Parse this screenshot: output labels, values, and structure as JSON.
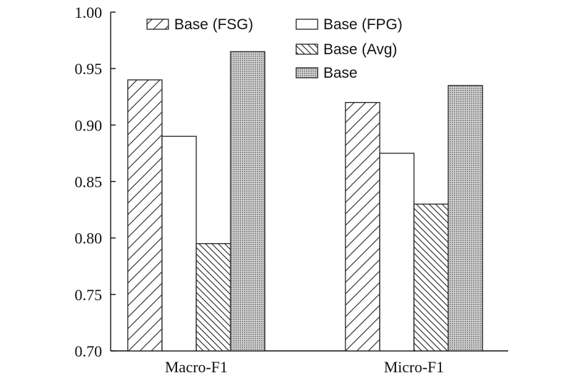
{
  "chart_data": {
    "type": "bar",
    "title": "",
    "xlabel": "",
    "ylabel": "",
    "categories": [
      "Macro-F1",
      "Micro-F1"
    ],
    "series": [
      {
        "name": "Base (FSG)",
        "values": [
          0.94,
          0.92
        ],
        "pattern": "diag-up"
      },
      {
        "name": "Base (FPG)",
        "values": [
          0.89,
          0.875
        ],
        "pattern": "none"
      },
      {
        "name": "Base (Avg)",
        "values": [
          0.795,
          0.83
        ],
        "pattern": "diag-down"
      },
      {
        "name": "Base",
        "values": [
          0.965,
          0.935
        ],
        "pattern": "dots"
      }
    ],
    "ylim": [
      0.7,
      1.0
    ],
    "yticks": [
      "0.70",
      "0.75",
      "0.80",
      "0.85",
      "0.90",
      "0.95",
      "1.00"
    ],
    "grid": false,
    "legend_position": "top"
  }
}
